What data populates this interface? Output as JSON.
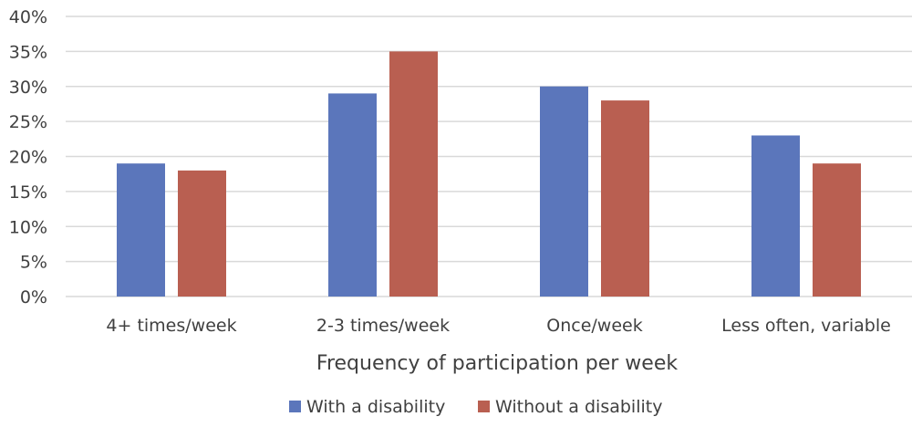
{
  "chart_data": {
    "type": "bar",
    "title": "",
    "xlabel": "Frequency of participation per week",
    "ylabel": "",
    "categories": [
      "4+ times/week",
      "2-3 times/week",
      "Once/week",
      "Less often, variable"
    ],
    "series": [
      {
        "name": "With a disability",
        "color": "#5b76bb",
        "values": [
          19,
          29,
          30,
          23
        ]
      },
      {
        "name": "Without a disability",
        "color": "#b95f51",
        "values": [
          18,
          35,
          28,
          19
        ]
      }
    ],
    "ylim": [
      0,
      40
    ],
    "yticks": [
      0,
      5,
      10,
      15,
      20,
      25,
      30,
      35,
      40
    ],
    "ytick_labels": [
      "0%",
      "5%",
      "10%",
      "15%",
      "20%",
      "25%",
      "30%",
      "35%",
      "40%"
    ],
    "grid": true,
    "legend_position": "bottom"
  }
}
